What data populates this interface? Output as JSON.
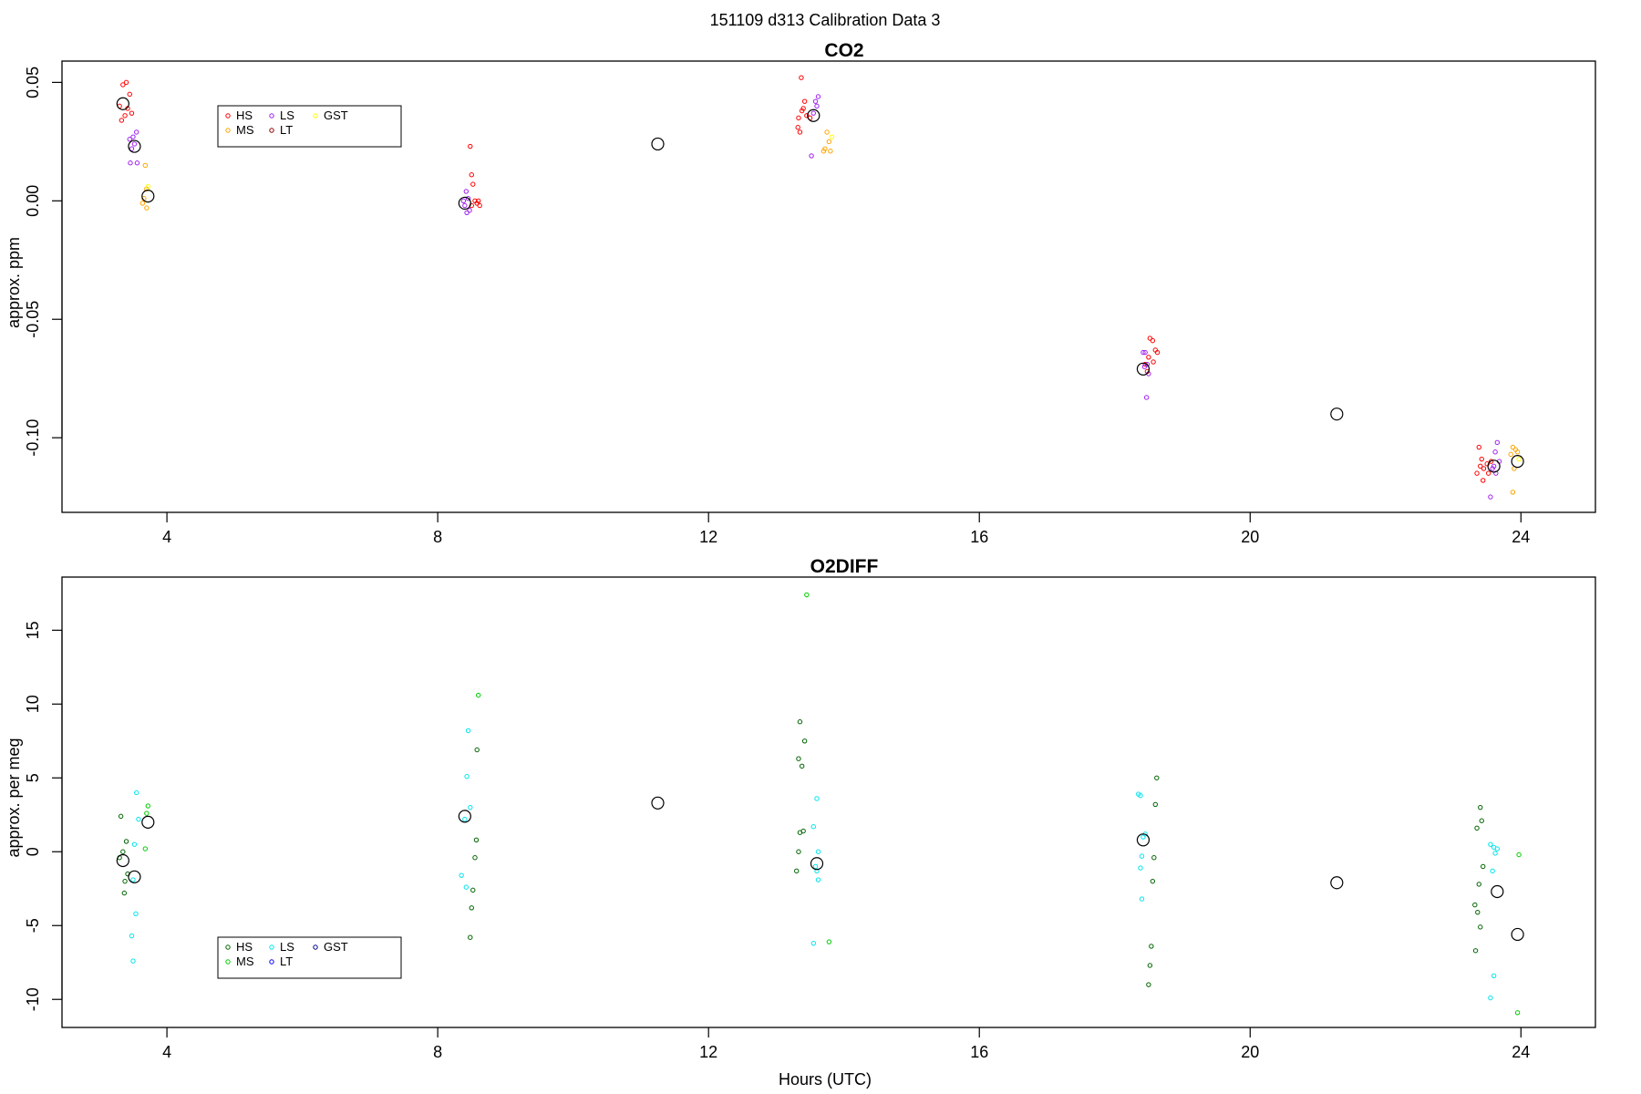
{
  "figure": {
    "suptitle": "151109   d313   Calibration Data 3",
    "xlabel": "Hours (UTC)"
  },
  "chart_data": [
    {
      "type": "scatter",
      "title": "CO2",
      "xlabel": "",
      "ylabel": "approx. ppm",
      "xlim": [
        2.45,
        25.1
      ],
      "ylim": [
        -0.1315,
        0.059
      ],
      "xticks": [
        4,
        8,
        12,
        16,
        20,
        24
      ],
      "yticks": [
        0.05,
        0.0,
        -0.05,
        -0.1
      ],
      "ytick_labels": [
        "0.05",
        "0.00",
        "-0.05",
        "-0.10"
      ],
      "legend": {
        "placement": "top-left",
        "entries": [
          {
            "label": "HS",
            "color": "#ff0000"
          },
          {
            "label": "MS",
            "color": "#ffa500"
          },
          {
            "label": "LS",
            "color": "#a020f0"
          },
          {
            "label": "LT",
            "color": "#8b0000"
          },
          {
            "label": "GST",
            "color": "#ffff00"
          }
        ]
      },
      "series": [
        {
          "name": "HS",
          "color": "#ff0000",
          "points": [
            [
              3.35,
              0.049
            ],
            [
              3.4,
              0.05
            ],
            [
              3.45,
              0.045
            ],
            [
              3.3,
              0.04
            ],
            [
              3.38,
              0.036
            ],
            [
              3.42,
              0.039
            ],
            [
              3.33,
              0.034
            ],
            [
              3.48,
              0.037
            ],
            [
              8.48,
              0.023
            ],
            [
              8.5,
              0.011
            ],
            [
              8.52,
              0.007
            ],
            [
              8.55,
              0.0
            ],
            [
              8.58,
              -0.001
            ],
            [
              8.6,
              0.0
            ],
            [
              8.62,
              -0.002
            ],
            [
              8.5,
              -0.002
            ],
            [
              13.37,
              0.052
            ],
            [
              13.42,
              0.042
            ],
            [
              13.38,
              0.038
            ],
            [
              13.45,
              0.036
            ],
            [
              13.32,
              0.031
            ],
            [
              13.4,
              0.039
            ],
            [
              13.35,
              0.029
            ],
            [
              13.5,
              0.035
            ],
            [
              13.33,
              0.035
            ],
            [
              18.52,
              -0.058
            ],
            [
              18.56,
              -0.059
            ],
            [
              18.6,
              -0.063
            ],
            [
              18.63,
              -0.064
            ],
            [
              18.5,
              -0.066
            ],
            [
              18.57,
              -0.068
            ],
            [
              18.45,
              -0.069
            ],
            [
              18.48,
              -0.072
            ],
            [
              23.38,
              -0.104
            ],
            [
              23.42,
              -0.109
            ],
            [
              23.35,
              -0.115
            ],
            [
              23.45,
              -0.113
            ],
            [
              23.5,
              -0.111
            ],
            [
              23.4,
              -0.112
            ],
            [
              23.44,
              -0.118
            ],
            [
              23.52,
              -0.115
            ],
            [
              23.56,
              -0.11
            ]
          ]
        },
        {
          "name": "MS",
          "color": "#ffa500",
          "points": [
            [
              3.68,
              0.015
            ],
            [
              3.7,
              0.005
            ],
            [
              3.66,
              0.001
            ],
            [
              3.64,
              -0.001
            ],
            [
              3.7,
              -0.003
            ],
            [
              13.75,
              0.029
            ],
            [
              13.78,
              0.025
            ],
            [
              13.72,
              0.022
            ],
            [
              13.8,
              0.021
            ],
            [
              13.7,
              0.021
            ],
            [
              23.88,
              -0.104
            ],
            [
              23.92,
              -0.105
            ],
            [
              23.95,
              -0.106
            ],
            [
              23.85,
              -0.107
            ],
            [
              23.9,
              -0.113
            ],
            [
              23.88,
              -0.123
            ]
          ]
        },
        {
          "name": "LS",
          "color": "#a020f0",
          "points": [
            [
              3.55,
              0.029
            ],
            [
              3.5,
              0.027
            ],
            [
              3.45,
              0.026
            ],
            [
              3.52,
              0.024
            ],
            [
              3.48,
              0.022
            ],
            [
              3.46,
              0.016
            ],
            [
              3.56,
              0.016
            ],
            [
              8.42,
              0.004
            ],
            [
              8.45,
              0.001
            ],
            [
              8.38,
              0.0
            ],
            [
              8.4,
              -0.002
            ],
            [
              8.47,
              -0.004
            ],
            [
              8.43,
              -0.005
            ],
            [
              13.62,
              0.044
            ],
            [
              13.58,
              0.042
            ],
            [
              13.6,
              0.04
            ],
            [
              13.55,
              0.037
            ],
            [
              13.52,
              0.019
            ],
            [
              18.45,
              -0.064
            ],
            [
              18.42,
              -0.064
            ],
            [
              18.48,
              -0.069
            ],
            [
              18.44,
              -0.07
            ],
            [
              18.5,
              -0.073
            ],
            [
              18.47,
              -0.083
            ],
            [
              23.65,
              -0.102
            ],
            [
              23.62,
              -0.106
            ],
            [
              23.68,
              -0.11
            ],
            [
              23.6,
              -0.112
            ],
            [
              23.58,
              -0.113
            ],
            [
              23.63,
              -0.115
            ],
            [
              23.55,
              -0.125
            ]
          ]
        },
        {
          "name": "LT",
          "color": "#8b0000",
          "points": []
        },
        {
          "name": "GST",
          "color": "#ffff00",
          "points": [
            [
              3.72,
              0.006
            ],
            [
              13.82,
              0.027
            ],
            [
              23.97,
              -0.109
            ]
          ]
        }
      ],
      "means": [
        [
          3.35,
          0.041
        ],
        [
          3.52,
          0.023
        ],
        [
          3.72,
          0.002
        ],
        [
          8.4,
          -0.001
        ],
        [
          11.25,
          0.024
        ],
        [
          13.55,
          0.036
        ],
        [
          18.42,
          -0.071
        ],
        [
          21.28,
          -0.09
        ],
        [
          23.6,
          -0.112
        ],
        [
          23.95,
          -0.11
        ]
      ]
    },
    {
      "type": "scatter",
      "title": "O2DIFF",
      "xlabel": "Hours (UTC)",
      "ylabel": "approx. per meg",
      "xlim": [
        2.45,
        25.1
      ],
      "ylim": [
        -11.9,
        18.6
      ],
      "xticks": [
        4,
        8,
        12,
        16,
        20,
        24
      ],
      "yticks": [
        15,
        10,
        5,
        0,
        -5,
        -10
      ],
      "ytick_labels": [
        "15",
        "10",
        "5",
        "0",
        "-5",
        "-10"
      ],
      "legend": {
        "placement": "bottom-left",
        "entries": [
          {
            "label": "HS",
            "color": "#006400"
          },
          {
            "label": "MS",
            "color": "#00cd00"
          },
          {
            "label": "LS",
            "color": "#00e5ee"
          },
          {
            "label": "LT",
            "color": "#0000ff"
          },
          {
            "label": "GST",
            "color": "#00008b"
          }
        ]
      },
      "series": [
        {
          "name": "HS",
          "color": "#006400",
          "points": [
            [
              3.32,
              2.4
            ],
            [
              3.4,
              0.7
            ],
            [
              3.35,
              0.0
            ],
            [
              3.3,
              -0.4
            ],
            [
              3.42,
              -1.5
            ],
            [
              3.38,
              -2.0
            ],
            [
              3.37,
              -2.8
            ],
            [
              8.58,
              6.9
            ],
            [
              8.57,
              0.8
            ],
            [
              8.55,
              -0.4
            ],
            [
              8.52,
              -2.6
            ],
            [
              8.5,
              -3.8
            ],
            [
              8.48,
              -5.8
            ],
            [
              13.35,
              8.8
            ],
            [
              13.42,
              7.5
            ],
            [
              13.33,
              6.3
            ],
            [
              13.38,
              5.8
            ],
            [
              13.4,
              1.4
            ],
            [
              13.35,
              1.3
            ],
            [
              13.33,
              0.0
            ],
            [
              13.3,
              -1.3
            ],
            [
              18.62,
              5.0
            ],
            [
              18.6,
              3.2
            ],
            [
              18.58,
              -0.4
            ],
            [
              18.56,
              -2.0
            ],
            [
              18.54,
              -6.4
            ],
            [
              18.52,
              -7.7
            ],
            [
              18.5,
              -9.0
            ],
            [
              23.4,
              3.0
            ],
            [
              23.42,
              2.1
            ],
            [
              23.35,
              1.6
            ],
            [
              23.44,
              -1.0
            ],
            [
              23.38,
              -2.2
            ],
            [
              23.32,
              -3.6
            ],
            [
              23.36,
              -4.1
            ],
            [
              23.4,
              -5.1
            ],
            [
              23.33,
              -6.7
            ]
          ]
        },
        {
          "name": "MS",
          "color": "#00cd00",
          "points": [
            [
              3.72,
              3.1
            ],
            [
              3.7,
              2.6
            ],
            [
              3.68,
              0.2
            ],
            [
              8.6,
              10.6
            ],
            [
              13.45,
              17.4
            ],
            [
              13.78,
              -6.1
            ],
            [
              23.97,
              -0.2
            ],
            [
              23.95,
              -10.9
            ]
          ]
        },
        {
          "name": "LS",
          "color": "#00e5ee",
          "points": [
            [
              3.55,
              4.0
            ],
            [
              3.58,
              2.2
            ],
            [
              3.52,
              0.5
            ],
            [
              3.5,
              -1.9
            ],
            [
              3.54,
              -4.2
            ],
            [
              3.48,
              -5.7
            ],
            [
              3.5,
              -7.4
            ],
            [
              8.45,
              8.2
            ],
            [
              8.43,
              5.1
            ],
            [
              8.48,
              3.0
            ],
            [
              8.4,
              2.2
            ],
            [
              8.35,
              -1.6
            ],
            [
              8.42,
              -2.4
            ],
            [
              13.6,
              3.6
            ],
            [
              13.55,
              1.7
            ],
            [
              13.62,
              0.0
            ],
            [
              13.58,
              -1.0
            ],
            [
              13.6,
              -1.3
            ],
            [
              13.62,
              -1.9
            ],
            [
              13.55,
              -6.2
            ],
            [
              18.35,
              3.9
            ],
            [
              18.38,
              3.8
            ],
            [
              18.45,
              1.2
            ],
            [
              18.42,
              1.0
            ],
            [
              18.4,
              -0.3
            ],
            [
              18.38,
              -1.1
            ],
            [
              18.4,
              -3.2
            ],
            [
              23.55,
              0.5
            ],
            [
              23.6,
              0.3
            ],
            [
              23.65,
              0.2
            ],
            [
              23.62,
              -0.1
            ],
            [
              23.58,
              -1.3
            ],
            [
              23.6,
              -8.4
            ],
            [
              23.55,
              -9.9
            ]
          ]
        },
        {
          "name": "LT",
          "color": "#0000ff",
          "points": []
        },
        {
          "name": "GST",
          "color": "#00008b",
          "points": []
        }
      ],
      "means": [
        [
          3.35,
          -0.6
        ],
        [
          3.52,
          -1.7
        ],
        [
          3.72,
          2.0
        ],
        [
          8.4,
          2.4
        ],
        [
          11.25,
          3.3
        ],
        [
          13.6,
          -0.8
        ],
        [
          18.42,
          0.8
        ],
        [
          21.28,
          -2.1
        ],
        [
          23.65,
          -2.7
        ],
        [
          23.95,
          -5.6
        ]
      ]
    }
  ]
}
